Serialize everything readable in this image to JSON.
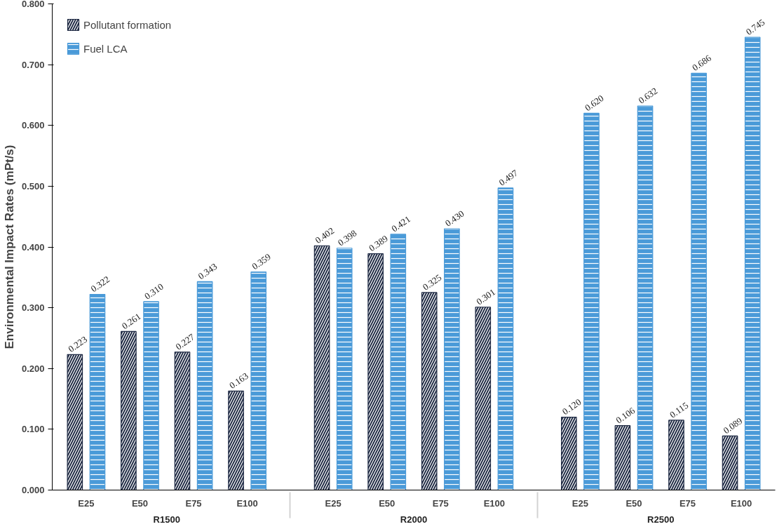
{
  "chart_data": {
    "type": "bar",
    "ylabel": "Environmental Impact Rates (mPt/s)",
    "categories": [
      "E25",
      "E50",
      "E75",
      "E100",
      "E25",
      "E50",
      "E75",
      "E100",
      "E25",
      "E50",
      "E75",
      "E100"
    ],
    "annotations": [
      "R1500",
      "R2000",
      "R2500"
    ],
    "series": [
      {
        "name": "Pollutant formation",
        "color": "#1f2a44",
        "values": [
          0.223,
          0.261,
          0.227,
          0.163,
          0.402,
          0.389,
          0.325,
          0.301,
          0.12,
          0.106,
          0.115,
          0.089
        ],
        "value_labels": [
          "0.223",
          "0.261",
          "0.227",
          "0.163",
          "0.402",
          "0.389",
          "0.325",
          "0.301",
          "0.120",
          "0.106",
          "0.115",
          "0.089"
        ]
      },
      {
        "name": "Fuel LCA",
        "color": "#4a9ad8",
        "values": [
          0.322,
          0.31,
          0.343,
          0.359,
          0.398,
          0.421,
          0.43,
          0.497,
          0.62,
          0.632,
          0.686,
          0.745
        ],
        "value_labels": [
          "0.322",
          "0.310",
          "0.343",
          "0.359",
          "0.398",
          "0.421",
          "0.430",
          "0.497",
          "0.620",
          "0.632",
          "0.686",
          "0.745"
        ]
      }
    ],
    "ylim": [
      0,
      0.8
    ],
    "yticks": [
      {
        "value": 0,
        "label": "0.000"
      },
      {
        "value": 0.1,
        "label": "0.100"
      },
      {
        "value": 0.2,
        "label": "0.200"
      },
      {
        "value": 0.3,
        "label": "0.300"
      },
      {
        "value": 0.4,
        "label": "0.400"
      },
      {
        "value": 0.5,
        "label": "0.500"
      },
      {
        "value": 0.6,
        "label": "0.600"
      },
      {
        "value": 0.7,
        "label": "0.700"
      },
      {
        "value": 0.8,
        "label": "0.800"
      }
    ],
    "grid": false,
    "legend": "top left"
  }
}
